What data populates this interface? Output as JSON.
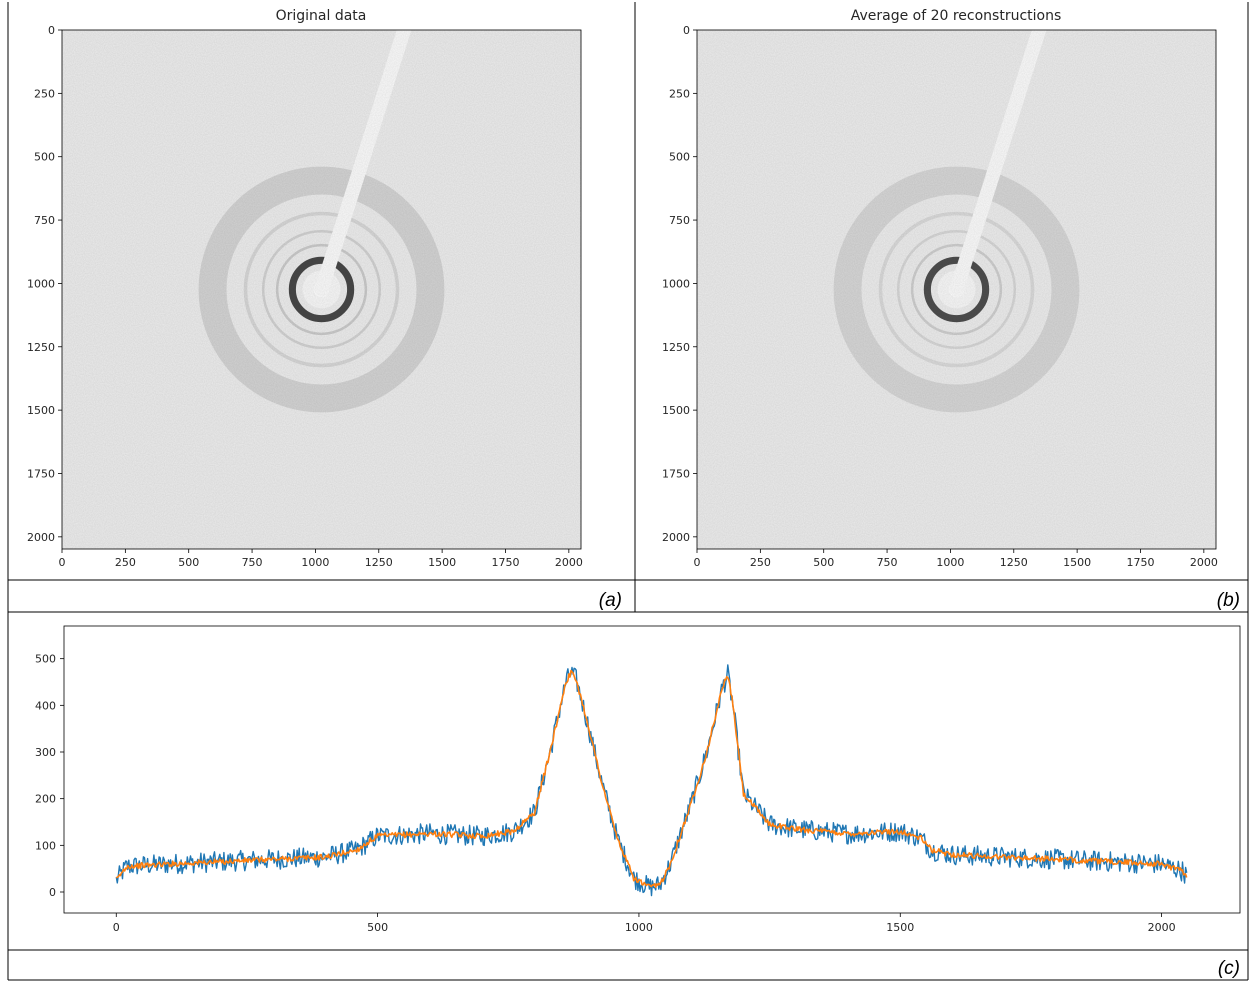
{
  "panels": {
    "a": {
      "caption": "(a)"
    },
    "b": {
      "caption": "(b)"
    },
    "c": {
      "caption": "(c)"
    }
  },
  "chart_data": [
    {
      "type": "heatmap",
      "title": "Original data",
      "xlim": [
        0,
        2048
      ],
      "ylim": [
        2048,
        0
      ],
      "xticks": [
        0,
        250,
        500,
        750,
        1000,
        1250,
        1500,
        1750,
        2000
      ],
      "yticks": [
        0,
        250,
        500,
        750,
        1000,
        1250,
        1500,
        1750,
        2000
      ],
      "colormap": "gray_r",
      "center": [
        1024,
        1024
      ],
      "rings": [
        {
          "r": 115,
          "width": 28,
          "intensity": 0.88
        },
        {
          "r": 175,
          "width": 10,
          "intensity": 0.18
        },
        {
          "r": 230,
          "width": 10,
          "intensity": 0.14
        },
        {
          "r": 300,
          "width": 14,
          "intensity": 0.12
        },
        {
          "r": 430,
          "width": 110,
          "intensity": 0.13
        }
      ],
      "beamstop": {
        "from": [
          1024,
          1024
        ],
        "to": [
          1350,
          0
        ],
        "width": 55
      }
    },
    {
      "type": "heatmap",
      "title": "Average of 20 reconstructions",
      "xlim": [
        0,
        2048
      ],
      "ylim": [
        2048,
        0
      ],
      "xticks": [
        0,
        250,
        500,
        750,
        1000,
        1250,
        1500,
        1750,
        2000
      ],
      "yticks": [
        0,
        250,
        500,
        750,
        1000,
        1250,
        1500,
        1750,
        2000
      ],
      "colormap": "gray_r",
      "center": [
        1024,
        1024
      ],
      "rings": [
        {
          "r": 115,
          "width": 28,
          "intensity": 0.85
        },
        {
          "r": 175,
          "width": 10,
          "intensity": 0.16
        },
        {
          "r": 230,
          "width": 10,
          "intensity": 0.12
        },
        {
          "r": 300,
          "width": 14,
          "intensity": 0.1
        },
        {
          "r": 430,
          "width": 110,
          "intensity": 0.12
        }
      ],
      "beamstop": {
        "from": [
          1024,
          1024
        ],
        "to": [
          1350,
          0
        ],
        "width": 55
      }
    },
    {
      "type": "line",
      "xlim": [
        -100,
        2150
      ],
      "ylim": [
        -45,
        570
      ],
      "xticks": [
        0,
        500,
        1000,
        1500,
        2000
      ],
      "yticks": [
        0,
        100,
        200,
        300,
        400,
        500
      ],
      "series": [
        {
          "color": "#1f77b4",
          "noise": 22,
          "x": [
            0,
            20,
            100,
            200,
            300,
            400,
            460,
            500,
            600,
            700,
            760,
            800,
            830,
            860,
            870,
            880,
            900,
            930,
            960,
            990,
            1020,
            1040,
            1060,
            1100,
            1130,
            1160,
            1170,
            1180,
            1200,
            1250,
            1300,
            1400,
            1500,
            1540,
            1560,
            1600,
            1700,
            1800,
            1900,
            2000,
            2040,
            2048
          ],
          "y": [
            25,
            55,
            60,
            65,
            70,
            75,
            90,
            120,
            125,
            120,
            130,
            170,
            300,
            450,
            470,
            455,
            370,
            230,
            110,
            30,
            10,
            15,
            60,
            190,
            300,
            440,
            465,
            400,
            210,
            145,
            135,
            125,
            130,
            115,
            90,
            80,
            75,
            70,
            65,
            60,
            45,
            35
          ]
        },
        {
          "color": "#ff7f0e",
          "noise": 6,
          "x": [
            0,
            20,
            100,
            200,
            300,
            400,
            460,
            500,
            600,
            700,
            760,
            800,
            830,
            860,
            870,
            880,
            900,
            930,
            960,
            990,
            1020,
            1040,
            1060,
            1100,
            1130,
            1160,
            1170,
            1180,
            1200,
            1250,
            1300,
            1400,
            1500,
            1540,
            1560,
            1600,
            1700,
            1800,
            1900,
            2000,
            2040,
            2048
          ],
          "y": [
            25,
            55,
            60,
            65,
            70,
            75,
            90,
            120,
            125,
            120,
            130,
            170,
            300,
            450,
            470,
            455,
            370,
            230,
            110,
            30,
            10,
            15,
            60,
            190,
            300,
            440,
            465,
            400,
            210,
            145,
            135,
            125,
            130,
            115,
            90,
            80,
            75,
            70,
            65,
            60,
            45,
            35
          ]
        }
      ]
    }
  ]
}
